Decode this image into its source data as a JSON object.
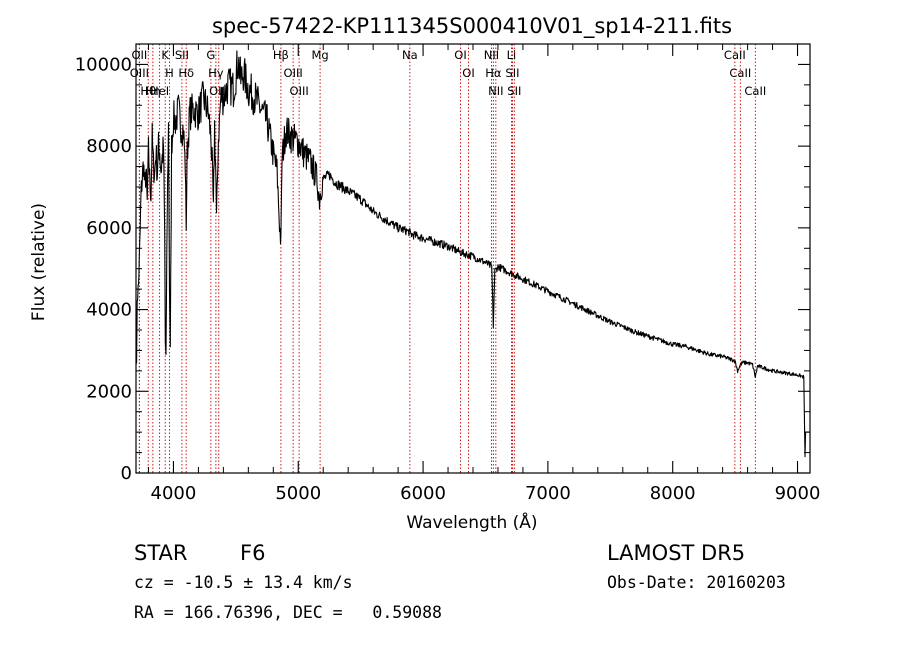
{
  "chart_data": {
    "type": "line",
    "title": "spec-57422-KP111345S000410V01_sp14-211.fits",
    "xlabel": "Wavelength (Å)",
    "ylabel": "Flux (relative)",
    "xlim": [
      3700,
      9100
    ],
    "ylim": [
      0,
      10500
    ],
    "x_ticks": [
      4000,
      5000,
      6000,
      7000,
      8000,
      9000
    ],
    "y_ticks": [
      0,
      2000,
      4000,
      6000,
      8000,
      10000
    ],
    "grid": false,
    "colors": {
      "spectrum": "#000000",
      "line_markers": "#cc0000",
      "axes": "#000000"
    },
    "series": [
      {
        "values_x": [
          3700,
          3705,
          3710,
          3720,
          3730,
          3740,
          3750,
          3760,
          3770,
          3780,
          3790,
          3800,
          3810,
          3820,
          3830,
          3840,
          3850,
          3860,
          3870,
          3880,
          3890,
          3900,
          3910,
          3920,
          3930,
          3935,
          3940,
          3950,
          3960,
          3968,
          3975,
          3985,
          4000,
          4020,
          4040,
          4060,
          4080,
          4095,
          4102,
          4110,
          4130,
          4160,
          4200,
          4240,
          4280,
          4300,
          4310,
          4320,
          4330,
          4340,
          4345,
          4360,
          4380,
          4400,
          4440,
          4480,
          4520,
          4540,
          4560,
          4600,
          4650,
          4700,
          4750,
          4800,
          4830,
          4850,
          4861,
          4870,
          4900,
          4950,
          5000,
          5050,
          5100,
          5150,
          5170,
          5184,
          5200,
          5250,
          5300,
          5400,
          5500,
          5600,
          5700,
          5800,
          5890,
          5900,
          6000,
          6100,
          6200,
          6300,
          6400,
          6500,
          6550,
          6563,
          6575,
          6600,
          6700,
          6800,
          6900,
          7000,
          7100,
          7200,
          7300,
          7400,
          7500,
          7600,
          7700,
          7800,
          7900,
          8000,
          8100,
          8200,
          8300,
          8400,
          8498,
          8520,
          8542,
          8560,
          8600,
          8640,
          8662,
          8680,
          8700,
          8800,
          8900,
          9000,
          9050,
          9060,
          9065,
          9080,
          9100
        ],
        "values_y": [
          2800,
          2600,
          4300,
          4600,
          5500,
          6800,
          7200,
          7600,
          7000,
          7400,
          6600,
          7900,
          7200,
          6800,
          8200,
          7500,
          7300,
          7900,
          7300,
          8000,
          7900,
          7400,
          7700,
          8000,
          5800,
          3200,
          2900,
          6300,
          8500,
          4500,
          3000,
          8000,
          8700,
          8600,
          8900,
          8500,
          8400,
          7500,
          6100,
          7800,
          8800,
          8900,
          8800,
          9200,
          8800,
          8200,
          7600,
          6400,
          8500,
          7200,
          6200,
          8200,
          9200,
          9200,
          9500,
          9400,
          10100,
          9600,
          9800,
          9400,
          9200,
          8900,
          8600,
          7800,
          7400,
          6100,
          5600,
          7700,
          8400,
          8200,
          8100,
          7800,
          7600,
          7200,
          6700,
          7000,
          7200,
          7300,
          7100,
          6900,
          6700,
          6400,
          6200,
          6000,
          5900,
          5850,
          5750,
          5650,
          5550,
          5400,
          5300,
          5150,
          5050,
          3600,
          4950,
          5050,
          4900,
          4750,
          4600,
          4450,
          4300,
          4150,
          4000,
          3850,
          3700,
          3580,
          3450,
          3350,
          3250,
          3150,
          3100,
          3000,
          2900,
          2850,
          2750,
          2500,
          2650,
          2700,
          2700,
          2650,
          2350,
          2620,
          2600,
          2500,
          2450,
          2400,
          2350,
          400,
          1000,
          1000,
          1000
        ]
      }
    ],
    "line_markers": [
      {
        "label": "Hθ",
        "wavelength": 3798
      },
      {
        "label": "OII",
        "wavelength": 3727
      },
      {
        "label": "HeI",
        "wavelength": 3889
      },
      {
        "label": "Hη",
        "wavelength": 3835
      },
      {
        "label": "OIII",
        "wavelength": 3727
      },
      {
        "label": "K",
        "wavelength": 3934
      },
      {
        "label": "H",
        "wavelength": 3968
      },
      {
        "label": "SII",
        "wavelength": 4068
      },
      {
        "label": "Hδ",
        "wavelength": 4102
      },
      {
        "label": "G",
        "wavelength": 4300
      },
      {
        "label": "Hγ",
        "wavelength": 4340
      },
      {
        "label": "OIII",
        "wavelength": 4363
      },
      {
        "label": "Hβ",
        "wavelength": 4861
      },
      {
        "label": "OIII",
        "wavelength": 4959
      },
      {
        "label": "OIII",
        "wavelength": 5007
      },
      {
        "label": "Mg",
        "wavelength": 5175
      },
      {
        "label": "Na",
        "wavelength": 5894
      },
      {
        "label": "OI",
        "wavelength": 6300
      },
      {
        "label": "OI",
        "wavelength": 6364
      },
      {
        "label": "NII",
        "wavelength": 6548
      },
      {
        "label": "Hα",
        "wavelength": 6563
      },
      {
        "label": "NII",
        "wavelength": 6583
      },
      {
        "label": "Li",
        "wavelength": 6708
      },
      {
        "label": "SII",
        "wavelength": 6716
      },
      {
        "label": "SII",
        "wavelength": 6731
      },
      {
        "label": "CaII",
        "wavelength": 8498
      },
      {
        "label": "CaII",
        "wavelength": 8542
      },
      {
        "label": "CaII",
        "wavelength": 8662
      }
    ]
  },
  "footer": {
    "object_class": "STAR",
    "subclass": "F6",
    "survey": "LAMOST DR5",
    "cz": "cz = -10.5 ± 13.4 km/s",
    "obs_date": "Obs-Date: 20160203",
    "coords": "RA = 166.76396, DEC =   0.59088"
  }
}
